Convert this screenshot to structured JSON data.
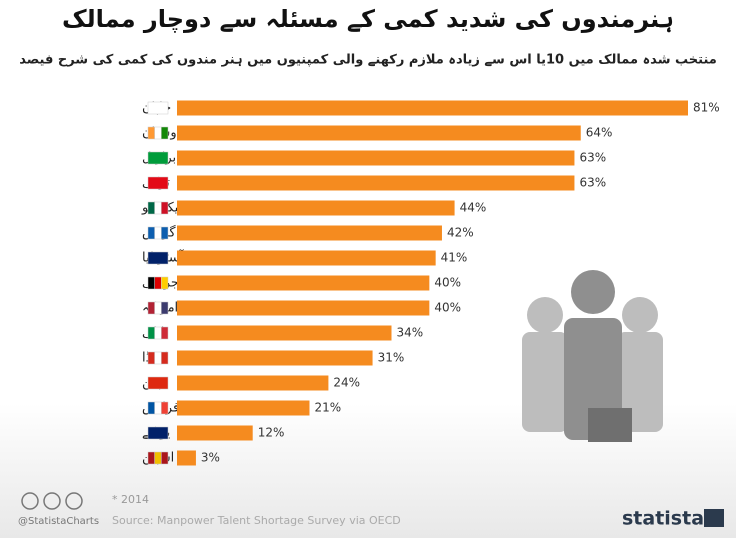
{
  "chart_data": {
    "type": "bar",
    "orientation": "horizontal",
    "title": "ہنرمندوں کی شدید کمی کے مسئلہ سے دوچار ممالک",
    "subtitle": "منتخب شدہ ممالک میں 10یا اس سے زیادہ ملازم رکھنے والی کمپنیوں میں ہنر مندوں کی کمی کی شرح فیصد",
    "categories": [
      "جاپان",
      "ہندوستان",
      "برازیل",
      "ترکی",
      "میکسکو",
      "گریس",
      "آسٹریلیا",
      "جرمنی",
      "امریکہ",
      "اٹلی",
      "کنیڈا",
      "چین",
      "فرانس",
      "یو کے",
      "اسپین"
    ],
    "values": [
      81,
      64,
      63,
      63,
      44,
      42,
      41,
      40,
      40,
      34,
      31,
      24,
      21,
      12,
      3
    ],
    "value_labels": [
      "81%",
      "64%",
      "63%",
      "63%",
      "44%",
      "42%",
      "41%",
      "40%",
      "40%",
      "34%",
      "31%",
      "24%",
      "21%",
      "12%",
      "3%"
    ],
    "color": "#f58b1f",
    "note": "* 2014",
    "credit": "@StatistaCharts",
    "source": "Source: Manpower Talent Shortage Survey via OECD",
    "brand": "statista"
  }
}
